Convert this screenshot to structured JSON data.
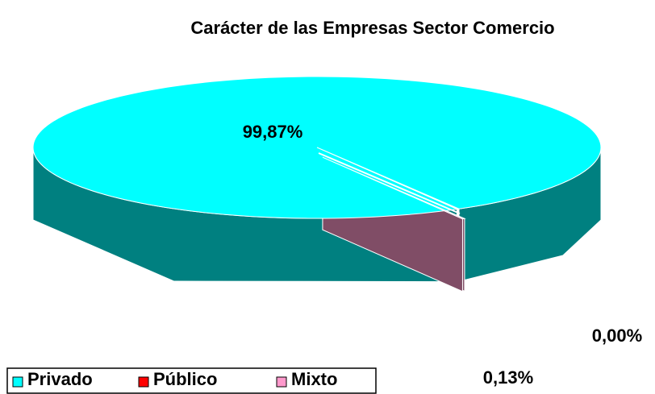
{
  "chart_data": {
    "type": "pie",
    "title": "Carácter de las Empresas Sector Comercio",
    "categories": [
      "Privado",
      "Público",
      "Mixto"
    ],
    "values": [
      99.87,
      0.0,
      0.13
    ],
    "value_labels": [
      "99,87%",
      "0,00%",
      "0,13%"
    ],
    "colors": [
      "#00ffff",
      "#ff0000",
      "#ff99cc"
    ],
    "legend": "bottom-left"
  }
}
